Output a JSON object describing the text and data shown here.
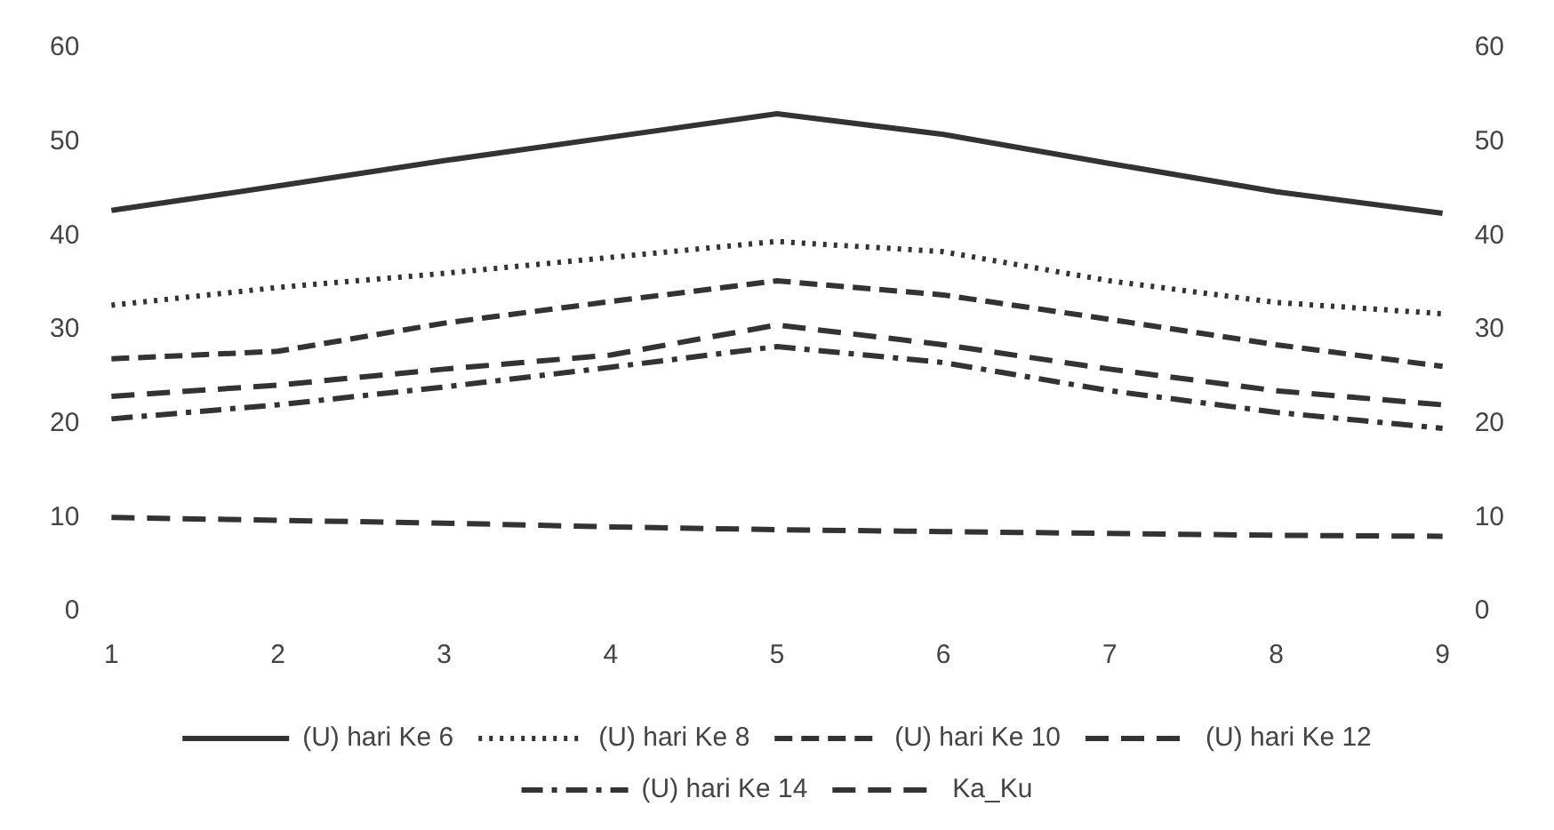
{
  "chart_data": {
    "type": "line",
    "categories": [
      "1",
      "2",
      "3",
      "4",
      "5",
      "6",
      "7",
      "8",
      "9"
    ],
    "series": [
      {
        "name": "(U) hari Ke 6",
        "color": "#333333",
        "line_style": "solid",
        "values": [
          42.7,
          45.3,
          48,
          50.5,
          53,
          50.8,
          47.7,
          44.7,
          42.4
        ]
      },
      {
        "name": "(U) hari Ke 8",
        "color": "#333333",
        "line_style": "dotted",
        "values": [
          32.6,
          34.5,
          36,
          37.7,
          39.4,
          38.3,
          35.2,
          32.9,
          31.7
        ]
      },
      {
        "name": "(U) hari Ke 10",
        "color": "#333333",
        "line_style": "dashed",
        "values": [
          26.9,
          27.7,
          30.7,
          33,
          35.2,
          33.7,
          31.1,
          28.4,
          26.1
        ]
      },
      {
        "name": "(U) hari Ke 12",
        "color": "#333333",
        "line_style": "longdash",
        "values": [
          22.9,
          24.1,
          25.8,
          27.3,
          30.5,
          28.4,
          25.8,
          23.5,
          22
        ]
      },
      {
        "name": "(U) hari Ke 14",
        "color": "#333333",
        "line_style": "dashdot",
        "values": [
          20.5,
          22,
          23.9,
          26,
          28.2,
          26.5,
          23.5,
          21.2,
          19.5
        ]
      },
      {
        "name": "Ka_Ku",
        "color": "#333333",
        "line_style": "longdash",
        "values": [
          10,
          9.7,
          9.4,
          9,
          8.7,
          8.5,
          8.3,
          8.1,
          8
        ]
      }
    ],
    "ylim": [
      0,
      60
    ],
    "yticks": [
      0,
      10,
      20,
      30,
      40,
      50,
      60
    ],
    "y2lim": [
      0,
      60
    ],
    "y2ticks": [
      0,
      10,
      20,
      30,
      40,
      50,
      60
    ],
    "grid": false,
    "legend": "bottom",
    "marker": "none"
  }
}
